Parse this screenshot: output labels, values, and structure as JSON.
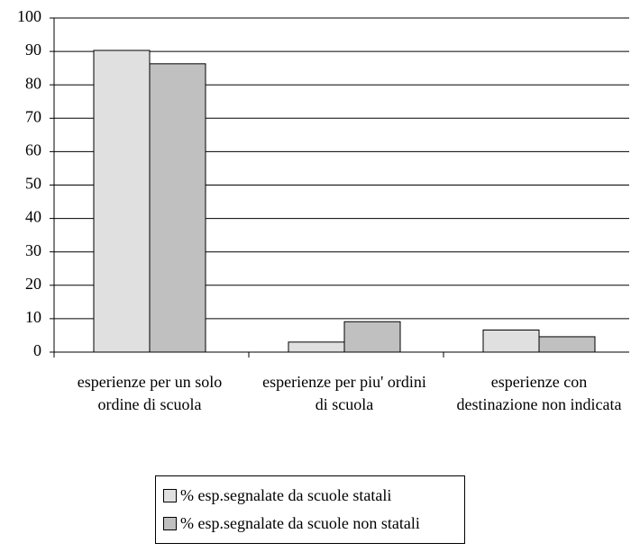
{
  "chart_data": {
    "type": "bar",
    "categories": [
      "esperienze per un solo ordine di scuola",
      "esperienze per piu' ordini di scuola",
      "esperienze con destinazione non indicata"
    ],
    "series": [
      {
        "name": "% esp.segnalate da scuole statali",
        "color": "#e0e0e0",
        "values": [
          90.3,
          3,
          6.6
        ]
      },
      {
        "name": "% esp.segnalate da scuole non statali",
        "color": "#c0c0c0",
        "values": [
          86.3,
          9.1,
          4.6
        ]
      }
    ],
    "ylim": [
      0,
      100
    ],
    "yticks": [
      0,
      10,
      20,
      30,
      40,
      50,
      60,
      70,
      80,
      90,
      100
    ],
    "grid": true,
    "legend": "bottom"
  }
}
